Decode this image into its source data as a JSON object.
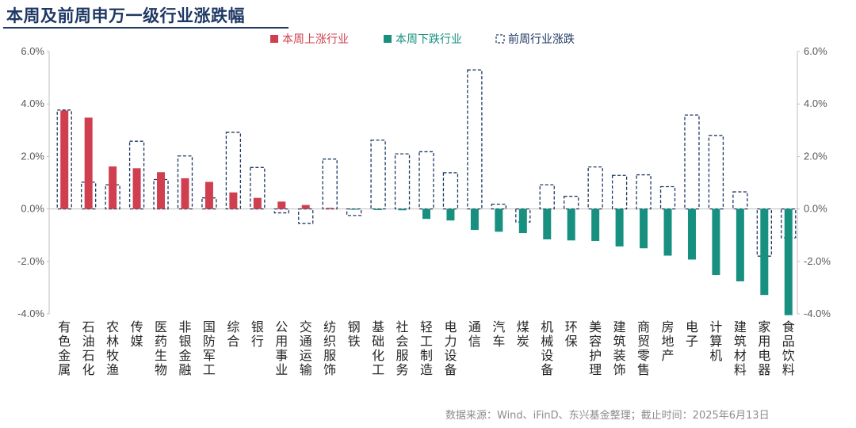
{
  "title": "本周及前周申万一级行业涨跌幅",
  "source": "数据来源：Wind、iFinD、东兴基金整理；截止时间：2025年6月13日",
  "colors": {
    "up": "#cf3f4f",
    "down": "#17907f",
    "prev": "#1f3864",
    "axis": "#bfbfbf",
    "grid": "#e6e6e6"
  },
  "chart_data": {
    "type": "bar",
    "categories": [
      "有色金属",
      "石油石化",
      "农林牧渔",
      "传媒",
      "医药生物",
      "非银金融",
      "国防军工",
      "综合",
      "银行",
      "公用事业",
      "交通运输",
      "纺织服饰",
      "钢铁",
      "基础化工",
      "社会服务",
      "轻工制造",
      "电力设备",
      "通信",
      "汽车",
      "煤炭",
      "机械设备",
      "环保",
      "美容护理",
      "建筑装饰",
      "商贸零售",
      "房地产",
      "电子",
      "计算机",
      "建筑材料",
      "家用电器",
      "食品饮料"
    ],
    "legend": [
      "本周上涨行业",
      "本周下跌行业",
      "前周行业涨跌"
    ],
    "series": [
      {
        "name": "本周行业涨跌",
        "values": [
          3.75,
          3.48,
          1.62,
          1.55,
          1.4,
          1.17,
          1.03,
          0.63,
          0.42,
          0.28,
          0.15,
          0.04,
          -0.03,
          -0.04,
          -0.05,
          -0.38,
          -0.44,
          -0.8,
          -0.87,
          -0.92,
          -1.16,
          -1.2,
          -1.22,
          -1.43,
          -1.5,
          -1.78,
          -1.93,
          -2.52,
          -2.76,
          -3.28,
          -4.05
        ]
      },
      {
        "name": "前周行业涨跌",
        "values": [
          3.77,
          1.02,
          0.92,
          2.58,
          1.12,
          2.02,
          0.42,
          2.92,
          1.58,
          -0.15,
          -0.55,
          1.9,
          -0.25,
          2.62,
          2.1,
          2.18,
          1.38,
          5.3,
          0.18,
          -0.5,
          0.92,
          0.48,
          1.6,
          1.28,
          1.3,
          0.85,
          3.58,
          2.8,
          0.65,
          -1.8,
          -1.1
        ]
      }
    ],
    "yaxis_left": {
      "min": -4,
      "max": 6,
      "step": 2,
      "format": "percent_1dp",
      "ticks": [
        "-4.0%",
        "-2.0%",
        "0.0%",
        "2.0%",
        "4.0%",
        "6.0%"
      ]
    },
    "yaxis_right": {
      "min": -4,
      "max": 6,
      "step": 2,
      "format": "percent_1dp",
      "ticks": [
        "-4.0%",
        "-2.0%",
        "0.0%",
        "2.0%",
        "4.0%",
        "6.0%"
      ]
    },
    "grid": false,
    "legend_position": "top"
  }
}
